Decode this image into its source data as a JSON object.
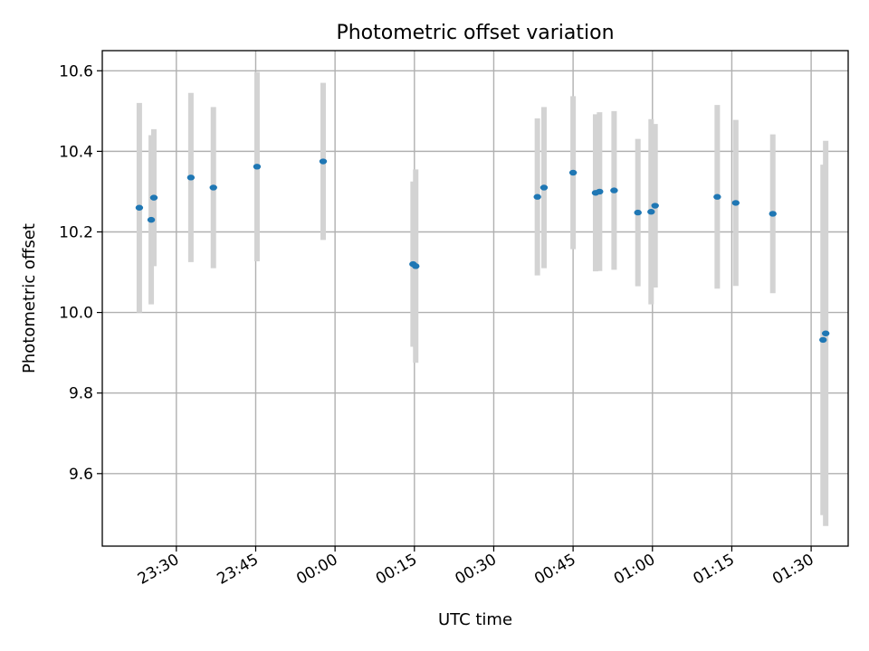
{
  "chart_data": {
    "type": "scatter",
    "title": "Photometric offset variation",
    "xlabel": "UTC time",
    "ylabel": "Photometric offset",
    "x_tick_labels": [
      "23:30",
      "23:45",
      "00:00",
      "00:15",
      "00:30",
      "00:45",
      "01:00",
      "01:15",
      "01:30"
    ],
    "y_tick_labels": [
      "9.6",
      "9.8",
      "10.0",
      "10.2",
      "10.4",
      "10.6"
    ],
    "xlim": [
      "23:16",
      "01:37"
    ],
    "ylim": [
      9.42,
      10.65
    ],
    "grid": true,
    "errorbar_color": "#d3d3d3",
    "marker_color": "#1f77b4",
    "series": [
      {
        "points": [
          {
            "x": "23:23:00",
            "y": 10.26,
            "err": 0.26
          },
          {
            "x": "23:25:15",
            "y": 10.23,
            "err": 0.21
          },
          {
            "x": "23:25:45",
            "y": 10.285,
            "err": 0.17
          },
          {
            "x": "23:32:45",
            "y": 10.335,
            "err": 0.21
          },
          {
            "x": "23:37:00",
            "y": 10.31,
            "err": 0.2
          },
          {
            "x": "23:45:15",
            "y": 10.362,
            "err": 0.235
          },
          {
            "x": "23:57:45",
            "y": 10.375,
            "err": 0.195
          },
          {
            "x": "00:14:45",
            "y": 10.12,
            "err": 0.205
          },
          {
            "x": "00:15:15",
            "y": 10.115,
            "err": 0.24
          },
          {
            "x": "00:38:15",
            "y": 10.287,
            "err": 0.195
          },
          {
            "x": "00:39:30",
            "y": 10.31,
            "err": 0.2
          },
          {
            "x": "00:45:00",
            "y": 10.347,
            "err": 0.19
          },
          {
            "x": "00:49:15",
            "y": 10.297,
            "err": 0.195
          },
          {
            "x": "00:50:00",
            "y": 10.3,
            "err": 0.197
          },
          {
            "x": "00:52:45",
            "y": 10.303,
            "err": 0.197
          },
          {
            "x": "00:57:15",
            "y": 10.248,
            "err": 0.183
          },
          {
            "x": "00:59:45",
            "y": 10.25,
            "err": 0.23
          },
          {
            "x": "01:00:30",
            "y": 10.265,
            "err": 0.203
          },
          {
            "x": "01:12:15",
            "y": 10.287,
            "err": 0.228
          },
          {
            "x": "01:15:45",
            "y": 10.272,
            "err": 0.206
          },
          {
            "x": "01:22:45",
            "y": 10.245,
            "err": 0.197
          },
          {
            "x": "01:32:15",
            "y": 9.932,
            "err": 0.435
          },
          {
            "x": "01:32:45",
            "y": 9.948,
            "err": 0.478
          }
        ]
      }
    ]
  }
}
